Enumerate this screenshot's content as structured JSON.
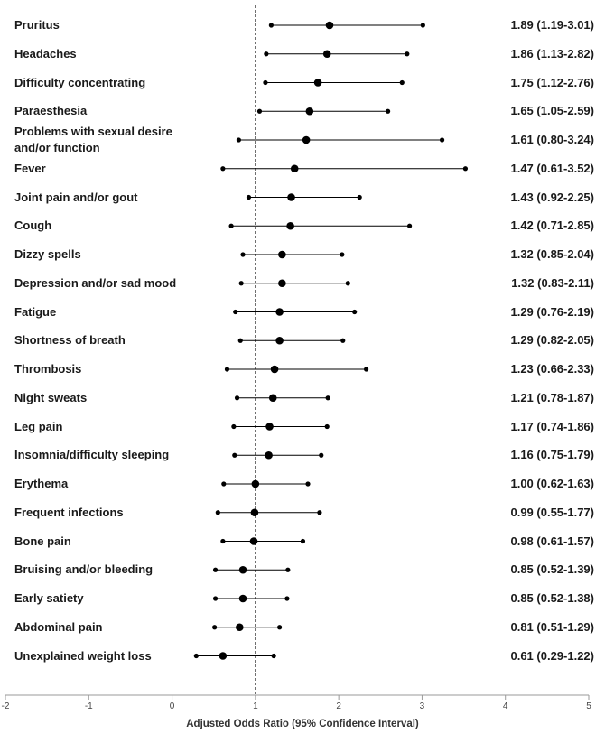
{
  "chart_data": {
    "type": "forest-plot",
    "title": "",
    "xlabel": "Adjusted Odds Ratio (95% Confidence Interval)",
    "ylabel": "",
    "xlim": [
      -2,
      5
    ],
    "x_ticks": [
      "-2",
      "-1",
      "0",
      "1",
      "2",
      "3",
      "4",
      "5"
    ],
    "reference_line": 1,
    "rows": [
      {
        "label": "Pruritus",
        "or": 1.89,
        "lo": 1.19,
        "hi": 3.01,
        "text": "1.89 (1.19-3.01)"
      },
      {
        "label": "Headaches",
        "or": 1.86,
        "lo": 1.13,
        "hi": 2.82,
        "text": "1.86 (1.13-2.82)"
      },
      {
        "label": "Difficulty concentrating",
        "or": 1.75,
        "lo": 1.12,
        "hi": 2.76,
        "text": "1.75 (1.12-2.76)"
      },
      {
        "label": "Paraesthesia",
        "or": 1.65,
        "lo": 1.05,
        "hi": 2.59,
        "text": "1.65 (1.05-2.59)"
      },
      {
        "label": "Problems with sexual desire and/or function",
        "or": 1.61,
        "lo": 0.8,
        "hi": 3.24,
        "text": "1.61 (0.80-3.24)"
      },
      {
        "label": "Fever",
        "or": 1.47,
        "lo": 0.61,
        "hi": 3.52,
        "text": "1.47 (0.61-3.52)"
      },
      {
        "label": "Joint pain and/or gout",
        "or": 1.43,
        "lo": 0.92,
        "hi": 2.25,
        "text": "1.43 (0.92-2.25)"
      },
      {
        "label": "Cough",
        "or": 1.42,
        "lo": 0.71,
        "hi": 2.85,
        "text": "1.42 (0.71-2.85)"
      },
      {
        "label": "Dizzy spells",
        "or": 1.32,
        "lo": 0.85,
        "hi": 2.04,
        "text": "1.32 (0.85-2.04)"
      },
      {
        "label": "Depression and/or sad mood",
        "or": 1.32,
        "lo": 0.83,
        "hi": 2.11,
        "text": "1.32 (0.83-2.11)"
      },
      {
        "label": "Fatigue",
        "or": 1.29,
        "lo": 0.76,
        "hi": 2.19,
        "text": "1.29 (0.76-2.19)"
      },
      {
        "label": "Shortness of breath",
        "or": 1.29,
        "lo": 0.82,
        "hi": 2.05,
        "text": "1.29 (0.82-2.05)"
      },
      {
        "label": "Thrombosis",
        "or": 1.23,
        "lo": 0.66,
        "hi": 2.33,
        "text": "1.23 (0.66-2.33)"
      },
      {
        "label": "Night sweats",
        "or": 1.21,
        "lo": 0.78,
        "hi": 1.87,
        "text": "1.21 (0.78-1.87)"
      },
      {
        "label": "Leg pain",
        "or": 1.17,
        "lo": 0.74,
        "hi": 1.86,
        "text": "1.17 (0.74-1.86)"
      },
      {
        "label": "Insomnia/difficulty sleeping",
        "or": 1.16,
        "lo": 0.75,
        "hi": 1.79,
        "text": "1.16 (0.75-1.79)"
      },
      {
        "label": "Erythema",
        "or": 1.0,
        "lo": 0.62,
        "hi": 1.63,
        "text": "1.00 (0.62-1.63)"
      },
      {
        "label": "Frequent infections",
        "or": 0.99,
        "lo": 0.55,
        "hi": 1.77,
        "text": "0.99 (0.55-1.77)"
      },
      {
        "label": "Bone pain",
        "or": 0.98,
        "lo": 0.61,
        "hi": 1.57,
        "text": "0.98 (0.61-1.57)"
      },
      {
        "label": "Bruising and/or bleeding",
        "or": 0.85,
        "lo": 0.52,
        "hi": 1.39,
        "text": "0.85 (0.52-1.39)"
      },
      {
        "label": "Early satiety",
        "or": 0.85,
        "lo": 0.52,
        "hi": 1.38,
        "text": "0.85 (0.52-1.38)"
      },
      {
        "label": "Abdominal pain",
        "or": 0.81,
        "lo": 0.51,
        "hi": 1.29,
        "text": "0.81 (0.51-1.29)"
      },
      {
        "label": "Unexplained weight loss",
        "or": 0.61,
        "lo": 0.29,
        "hi": 1.22,
        "text": "0.61 (0.29-1.22)"
      }
    ]
  }
}
